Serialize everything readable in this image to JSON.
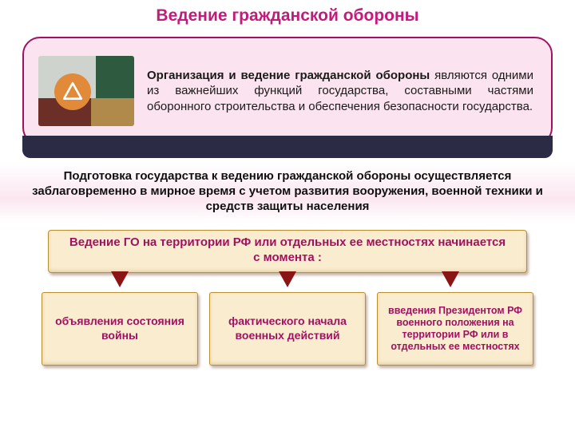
{
  "title": {
    "text": "Ведение гражданской обороны",
    "color": "#c31a7c",
    "fontsize": 21
  },
  "top_panel": {
    "background": "#fbe3ef",
    "border_color": "#a01260",
    "border_width": 2,
    "image_badge_bg": "#e08a3a",
    "image_badge_fg": "#ffffff",
    "text_bold": "Организация и ведение  гражданской обороны",
    "text_rest": " являются одними из важнейших функций государства, составными  частями оборонного строительства и обеспечения безопасности государства.",
    "text_color": "#1a1a1a"
  },
  "dark_strip_color": "#2b2b45",
  "mid_band": {
    "text": "Подготовка государства к ведению гражданской обороны осуществляется заблаговременно в мирное время с учетом развития вооружения, военной техники и средств защиты населения",
    "text_color": "#101010"
  },
  "sub_header": {
    "text": "Ведение ГО на территории РФ или отдельных ее местностях начинается с  момента :",
    "background": "#faeccf",
    "border_color": "#b88e2e",
    "text_color": "#a01260",
    "shadow": "2px 3px 3px rgba(90,40,0,0.35), inset 0 -2px 4px rgba(180,130,40,0.25)"
  },
  "pointer": {
    "color": "#8b1515",
    "positions_pct": [
      15,
      50,
      84
    ]
  },
  "boxes": {
    "background": "#faeccf",
    "border_color": "#b88e2e",
    "text_color": "#a01260",
    "shadow": "2px 3px 3px rgba(90,40,0,0.35), inset 0 -2px 4px rgba(180,130,40,0.25)",
    "items": [
      "объявления состояния войны",
      "фактического начала военных действий",
      "введения Президентом РФ военного положения на территории РФ или в отдельных ее местностях"
    ]
  }
}
